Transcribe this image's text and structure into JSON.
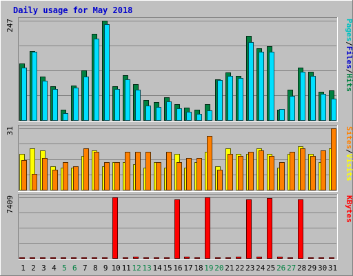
{
  "colors": {
    "background": "#C0C0C0",
    "title": "#0000CC",
    "hits": "#008040",
    "files": "#00E0FF",
    "pages": "#00C0C0",
    "visits": "#FFFF00",
    "sites": "#FF8000",
    "kbytes": "#FF0000",
    "weekend_day": "#008040"
  },
  "chart_data": {
    "type": "bar",
    "title": "Daily usage for May 2018",
    "days": [
      "1",
      "2",
      "3",
      "4",
      "5",
      "6",
      "7",
      "8",
      "9",
      "10",
      "11",
      "12",
      "13",
      "14",
      "15",
      "16",
      "17",
      "18",
      "19",
      "20",
      "21",
      "22",
      "23",
      "24",
      "25",
      "26",
      "27",
      "28",
      "29",
      "30",
      "31"
    ],
    "weekend_days": [
      "5",
      "6",
      "12",
      "13",
      "19",
      "20",
      "26",
      "27"
    ],
    "panels": [
      {
        "id": "hits",
        "ymax_label": "247",
        "ymax": 247,
        "legend": [
          {
            "text": "Pages",
            "color": "#00C0C0"
          },
          {
            "text": "/",
            "color": "#000000"
          },
          {
            "text": "Files",
            "color": "#0000CC"
          },
          {
            "text": "/",
            "color": "#000000"
          },
          {
            "text": "Hits",
            "color": "#008040"
          }
        ],
        "series": [
          {
            "name": "Hits",
            "color": "#008040",
            "values": [
              140,
              171,
              108,
              84,
              26,
              86,
              123,
              214,
              247,
              84,
              111,
              90,
              50,
              44,
              56,
              40,
              31,
              26,
              40,
              102,
              118,
              110,
              209,
              178,
              183,
              26,
              76,
              130,
              120,
              70,
              74
            ]
          },
          {
            "name": "Files",
            "color": "#00E0FF",
            "values": [
              131,
              170,
              98,
              78,
              17,
              80,
              108,
              203,
              239,
              78,
              101,
              75,
              36,
              32,
              46,
              30,
              20,
              16,
              24,
              100,
              110,
              105,
              194,
              170,
              170,
              27,
              60,
              120,
              110,
              66,
              53
            ]
          }
        ]
      },
      {
        "id": "visits",
        "ymax_label": "31",
        "ymax": 31,
        "legend": [
          {
            "text": "Sites",
            "color": "#FF8000"
          },
          {
            "text": "/",
            "color": "#000000"
          },
          {
            "text": "Visits",
            "color": "#FFFF00"
          }
        ],
        "series": [
          {
            "name": "Visits",
            "color": "#FFFF00",
            "values": [
              18,
              21,
              20,
              12,
              11,
              11,
              17,
              20,
              12,
              14,
              14,
              13,
              11,
              14,
              11,
              18,
              11,
              14,
              19,
              12,
              21,
              18,
              18,
              21,
              18,
              11,
              18,
              22,
              18,
              14,
              21
            ]
          },
          {
            "name": "Sites",
            "color": "#FF8000",
            "values": [
              15,
              8,
              16,
              10,
              14,
              12,
              21,
              19,
              14,
              14,
              19,
              19,
              19,
              14,
              19,
              14,
              16,
              16,
              27,
              10,
              18,
              17,
              19,
              20,
              17,
              14,
              19,
              21,
              17,
              20,
              31
            ]
          }
        ]
      },
      {
        "id": "kbytes",
        "ymax_label": "7409",
        "ymax": 7409,
        "legend": [
          {
            "text": "KBytes",
            "color": "#FF0000"
          }
        ],
        "series": [
          {
            "name": "KBytes",
            "color": "#FF0000",
            "values": [
              60,
              60,
              60,
              60,
              60,
              60,
              60,
              60,
              120,
              7409,
              60,
              150,
              60,
              60,
              120,
              7150,
              150,
              60,
              7409,
              60,
              60,
              150,
              7150,
              150,
              7300,
              150,
              60,
              7150,
              120,
              60,
              120
            ]
          }
        ]
      }
    ]
  }
}
